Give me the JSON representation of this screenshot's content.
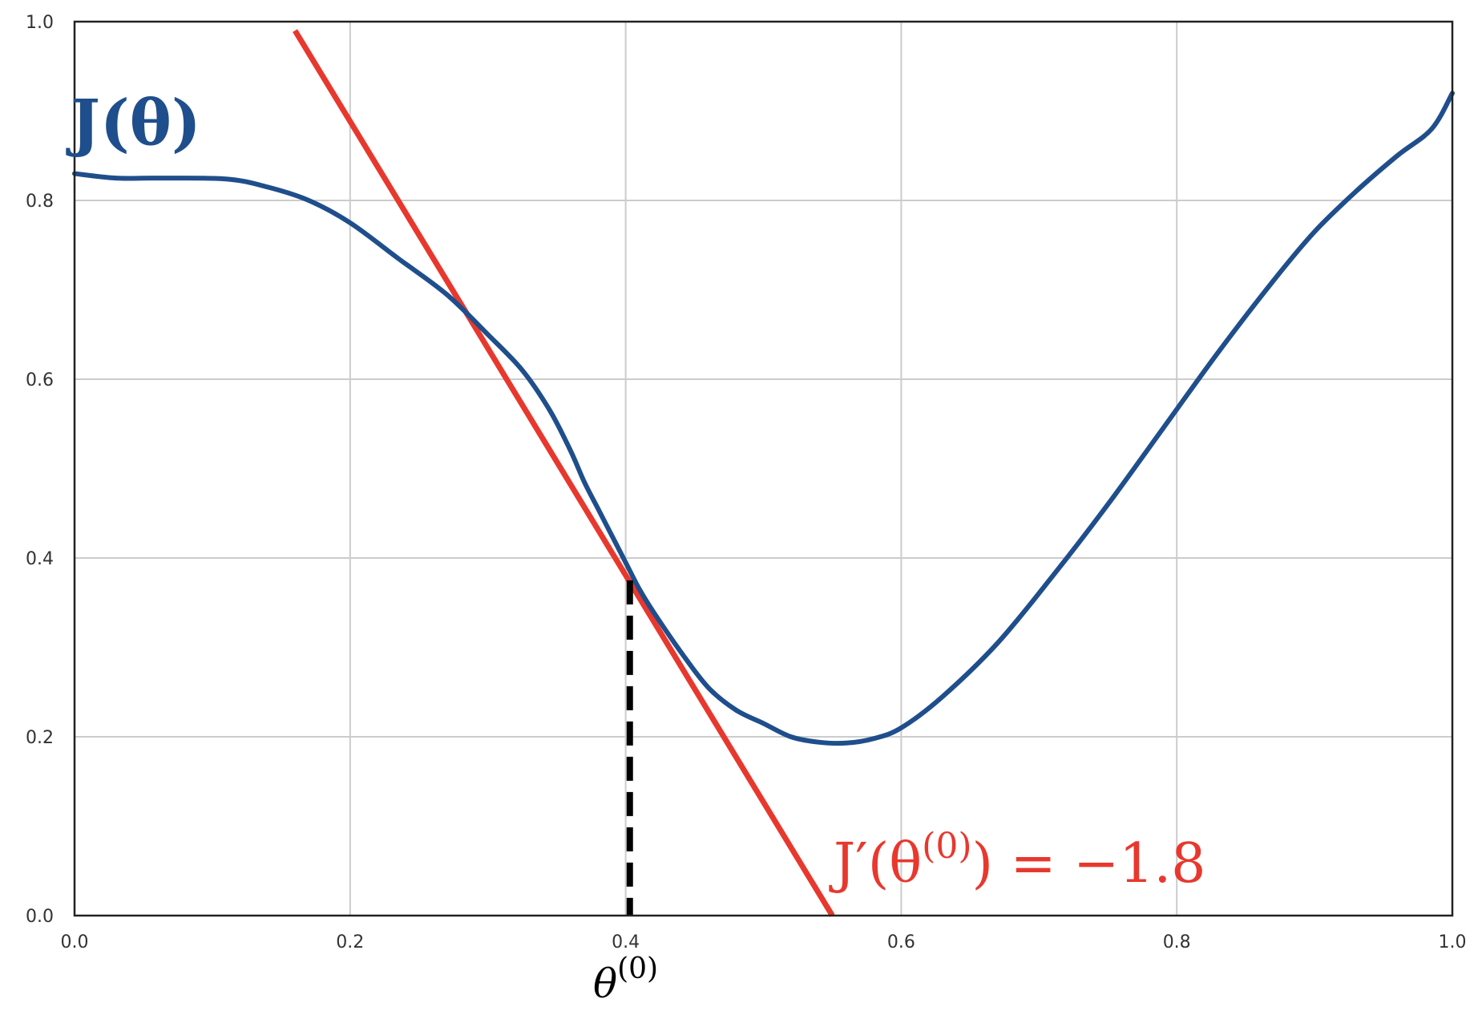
{
  "chart_data": {
    "type": "line",
    "xlim": [
      0.0,
      1.0
    ],
    "ylim": [
      0.0,
      1.0
    ],
    "grid": true,
    "xticks": [
      "0.0",
      "0.2",
      "0.4",
      "0.6",
      "0.8",
      "1.0"
    ],
    "yticks": [
      "0.0",
      "0.2",
      "0.4",
      "0.6",
      "0.8",
      "1.0"
    ],
    "series": [
      {
        "name": "J(θ)",
        "color": "#1f4e8c",
        "x": [
          0.0,
          0.03,
          0.06,
          0.11,
          0.14,
          0.17,
          0.2,
          0.235,
          0.27,
          0.3,
          0.325,
          0.345,
          0.36,
          0.37,
          0.38,
          0.39,
          0.4,
          0.41,
          0.42,
          0.44,
          0.46,
          0.48,
          0.5,
          0.52,
          0.54,
          0.56,
          0.58,
          0.6,
          0.63,
          0.67,
          0.71,
          0.75,
          0.79,
          0.83,
          0.87,
          0.9,
          0.93,
          0.96,
          0.985,
          1.0
        ],
        "y": [
          0.83,
          0.825,
          0.825,
          0.824,
          0.815,
          0.8,
          0.775,
          0.735,
          0.695,
          0.65,
          0.61,
          0.565,
          0.52,
          0.485,
          0.455,
          0.425,
          0.395,
          0.365,
          0.34,
          0.295,
          0.255,
          0.23,
          0.215,
          0.2,
          0.194,
          0.193,
          0.198,
          0.21,
          0.245,
          0.305,
          0.38,
          0.46,
          0.545,
          0.63,
          0.71,
          0.765,
          0.81,
          0.85,
          0.88,
          0.92
        ]
      },
      {
        "name": "tangent",
        "color": "#e8382d",
        "x": [
          0.16,
          0.55
        ],
        "y": [
          0.99,
          0.0
        ]
      }
    ],
    "marker": {
      "x": 0.403,
      "y_top": 0.375,
      "y_bottom": 0.0,
      "style": "dashed",
      "color": "#000000"
    }
  },
  "labels": {
    "curve": "J(θ)",
    "gradient": "J′(θ",
    "gradient_sup": "(0)",
    "gradient_tail": ") = −1.8",
    "theta": "θ",
    "theta_sup": "(0)"
  }
}
